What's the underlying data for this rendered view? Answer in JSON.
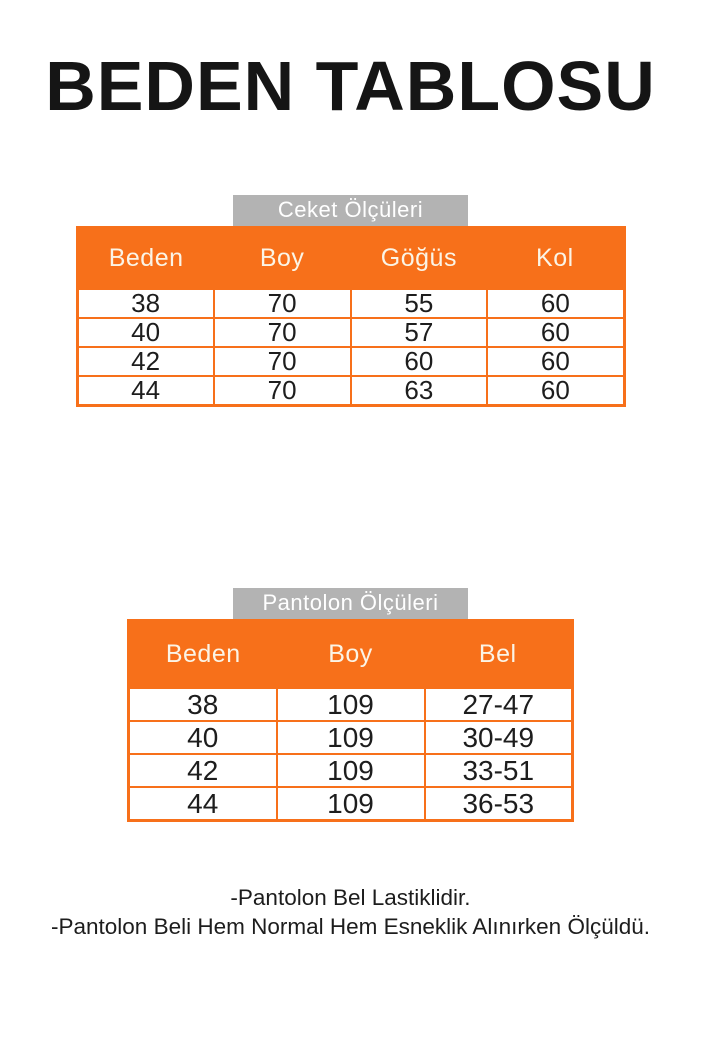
{
  "title": "BEDEN TABLOSU",
  "colors": {
    "orange": "#F7701A",
    "gray": "#B3B3B3",
    "header_text": "#FBF4E6",
    "body_text": "#1D1D1D"
  },
  "tables": [
    {
      "label": "Ceket Ölçüleri",
      "columns": [
        "Beden",
        "Boy",
        "Göğüs",
        "Kol"
      ],
      "rows": [
        [
          "38",
          "70",
          "55",
          "60"
        ],
        [
          "40",
          "70",
          "57",
          "60"
        ],
        [
          "42",
          "70",
          "60",
          "60"
        ],
        [
          "44",
          "70",
          "63",
          "60"
        ]
      ]
    },
    {
      "label": "Pantolon Ölçüleri",
      "columns": [
        "Beden",
        "Boy",
        "Bel"
      ],
      "rows": [
        [
          "38",
          "109",
          "27-47"
        ],
        [
          "40",
          "109",
          "30-49"
        ],
        [
          "42",
          "109",
          "33-51"
        ],
        [
          "44",
          "109",
          "36-53"
        ]
      ]
    }
  ],
  "notes": [
    "-Pantolon Bel Lastiklidir.",
    "-Pantolon Beli Hem Normal Hem Esneklik Alınırken Ölçüldü."
  ]
}
